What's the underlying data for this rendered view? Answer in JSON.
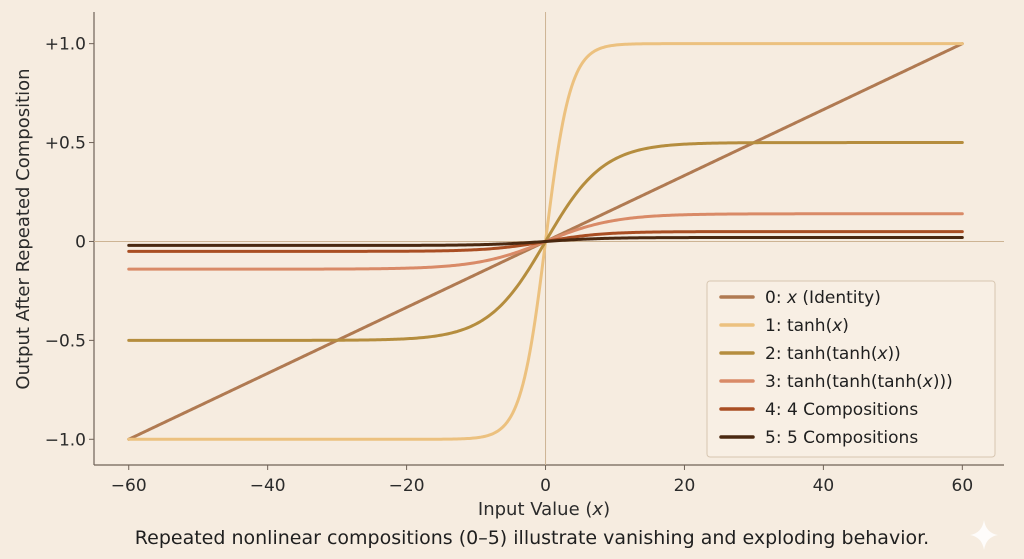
{
  "chart_data": {
    "type": "line",
    "xlabel_prefix": "Input Value (",
    "xlabel_var": "x",
    "xlabel_suffix": ")",
    "ylabel": "Output After Repeated Composition",
    "caption": "Repeated nonlinear compositions (0–5) illustrate vanishing and exploding behavior.",
    "xlim": [
      -65,
      66
    ],
    "ylim": [
      -1.13,
      1.16
    ],
    "x_ticks": [
      -60,
      -40,
      -20,
      0,
      20,
      40,
      60
    ],
    "x_tick_labels": [
      "−60",
      "−40",
      "−20",
      "0",
      "20",
      "40",
      "60"
    ],
    "y_ticks": [
      -1,
      -0.5,
      0,
      0.5,
      1
    ],
    "y_tick_labels": [
      "−1.0",
      "−0.5",
      "0",
      "+0.5",
      "+1.0"
    ],
    "grid": false,
    "zero_lines": true,
    "legend_position": "bottom-right",
    "x_range": [
      -60,
      60
    ],
    "series": [
      {
        "name_parts": [
          "0: ",
          "x",
          " (Identity)"
        ],
        "name_italic": [
          false,
          true,
          false
        ],
        "color": "#b07a52",
        "kind": "linear",
        "amp": 1.0,
        "k": 0.016667
      },
      {
        "name_parts": [
          "1: tanh(",
          "x",
          ")"
        ],
        "name_italic": [
          false,
          true,
          false
        ],
        "color": "#ecc17f",
        "kind": "tanh",
        "amp": 1.0,
        "k": 0.28
      },
      {
        "name_parts": [
          "2: tanh(tanh(",
          "x",
          "))"
        ],
        "name_italic": [
          false,
          true,
          false
        ],
        "color": "#b58d3e",
        "kind": "tanh",
        "amp": 0.5,
        "k": 0.12
      },
      {
        "name_parts": [
          "3: tanh(tanh(tanh(",
          "x",
          ")))"
        ],
        "name_italic": [
          false,
          true,
          false
        ],
        "color": "#d98a67",
        "kind": "tanh",
        "amp": 0.14,
        "k": 0.1
      },
      {
        "name_parts": [
          "4: 4 Compositions"
        ],
        "name_italic": [
          false
        ],
        "color": "#a94e23",
        "kind": "tanh",
        "amp": 0.05,
        "k": 0.12
      },
      {
        "name_parts": [
          "5: 5 Compositions"
        ],
        "name_italic": [
          false
        ],
        "color": "#4a2810",
        "kind": "tanh",
        "amp": 0.02,
        "k": 0.12
      }
    ]
  }
}
